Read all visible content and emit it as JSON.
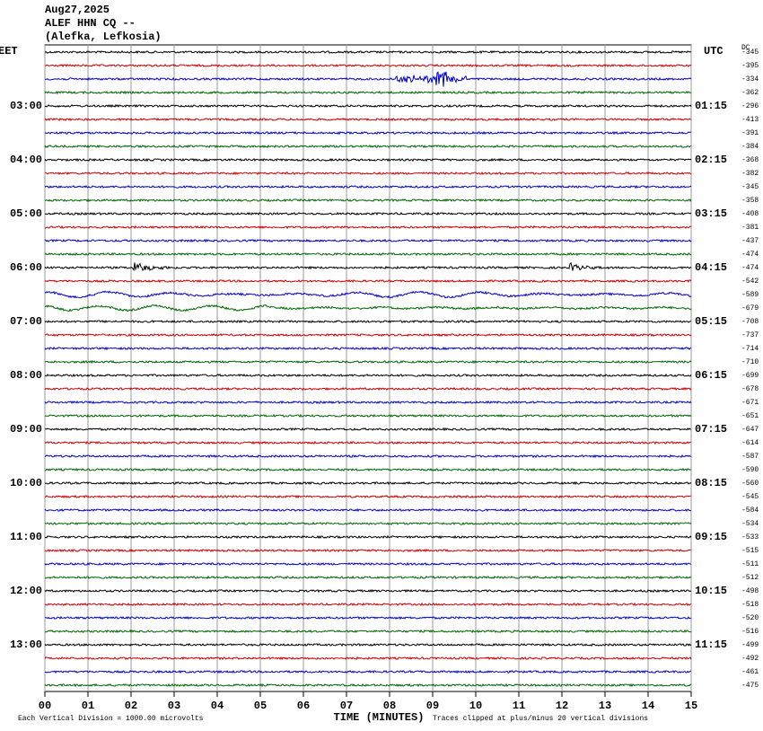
{
  "chart_data": {
    "type": "helicorder",
    "title": [
      "Aug27,2025",
      "ALEF HHN CQ --",
      "(Alefka, Lefkosia)"
    ],
    "left_axis_label": "EET",
    "right_axis_label": "UTC",
    "dc_label": "DC",
    "left_labels": [
      "03:00",
      "04:00",
      "05:00",
      "06:00",
      "07:00",
      "08:00",
      "09:00",
      "10:00",
      "11:00",
      "12:00",
      "13:00"
    ],
    "right_labels": [
      "01:15",
      "02:15",
      "03:15",
      "04:15",
      "05:15",
      "06:15",
      "07:15",
      "08:15",
      "09:15",
      "10:15",
      "11:15"
    ],
    "dc_values": [
      -345,
      -395,
      -334,
      -362,
      -296,
      -413,
      -391,
      -384,
      -368,
      -382,
      -345,
      -358,
      -408,
      -381,
      -437,
      -474,
      -474,
      -542,
      -589,
      -679,
      -708,
      -737,
      -714,
      -710,
      -699,
      -678,
      -671,
      -651,
      -647,
      -614,
      -587,
      -590,
      -560,
      -545,
      -584,
      -534,
      -533,
      -515,
      -511,
      -512,
      -498,
      -518,
      -520,
      -516,
      -499,
      -492,
      -461,
      -475
    ],
    "trace_colors": [
      "#000000",
      "#cc0000",
      "#0000cc",
      "#006600"
    ],
    "xlim": [
      0,
      15
    ],
    "xticks": [
      {
        "value": 0,
        "label": "00"
      },
      {
        "value": 1,
        "label": "01"
      },
      {
        "value": 2,
        "label": "02"
      },
      {
        "value": 3,
        "label": "03"
      },
      {
        "value": 4,
        "label": "04"
      },
      {
        "value": 5,
        "label": "05"
      },
      {
        "value": 6,
        "label": "06"
      },
      {
        "value": 7,
        "label": "07"
      },
      {
        "value": 8,
        "label": "08"
      },
      {
        "value": 9,
        "label": "09"
      },
      {
        "value": 10,
        "label": "10"
      },
      {
        "value": 11,
        "label": "11"
      },
      {
        "value": 12,
        "label": "12"
      },
      {
        "value": 13,
        "label": "13"
      },
      {
        "value": 14,
        "label": "14"
      },
      {
        "value": 15,
        "label": "15"
      }
    ],
    "xlabel": "TIME (MINUTES)",
    "footer_left": "Each Vertical Division = 1000.00 microvolts",
    "footer_right": "Traces clipped at plus/minus 20 vertical divisions"
  }
}
